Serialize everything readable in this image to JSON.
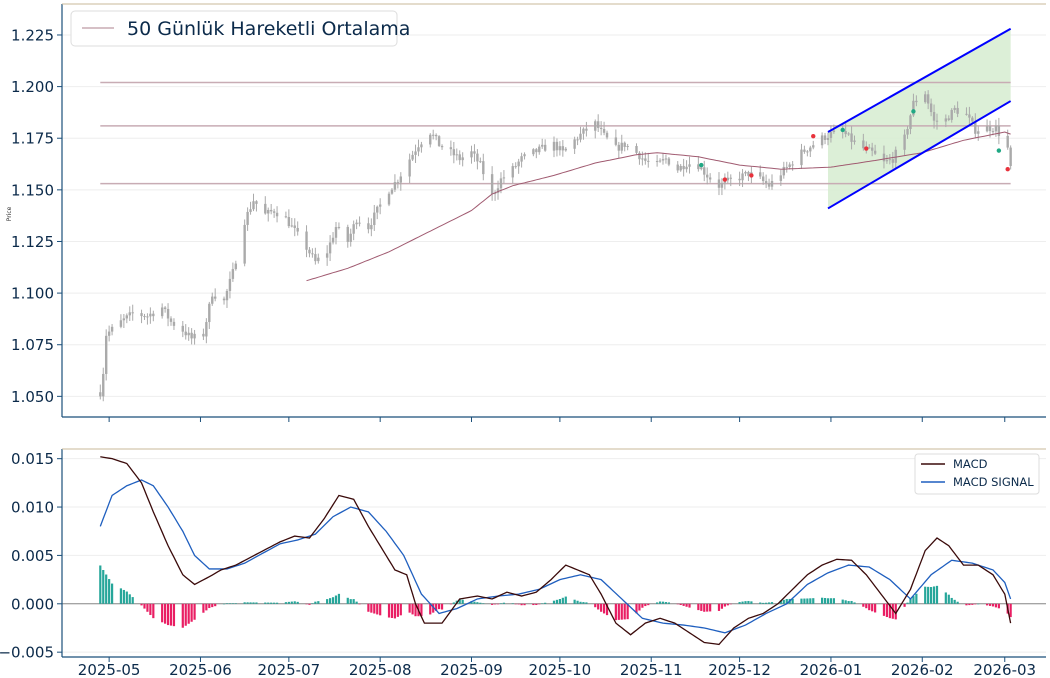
{
  "chart_data": [
    {
      "type": "candlestick",
      "ylabel": "Price",
      "ylim": [
        1.04,
        1.24
      ],
      "xlim": [
        "2025-04-15",
        "2026-03-15"
      ],
      "grid": true,
      "legend": {
        "placement": "top-left",
        "entries": [
          "50 Günlük Hareketli Ortalama"
        ]
      },
      "y_ticks": [
        "1.050",
        "1.075",
        "1.100",
        "1.125",
        "1.150",
        "1.175",
        "1.200",
        "1.225"
      ],
      "y_tick_values": [
        1.05,
        1.075,
        1.1,
        1.125,
        1.15,
        1.175,
        1.2,
        1.225
      ],
      "x_ticks": [
        "2025-05",
        "2025-06",
        "2025-07",
        "2025-08",
        "2025-09",
        "2025-10",
        "2025-11",
        "2025-12",
        "2026-01",
        "2026-02",
        "2026-03"
      ],
      "x_tick_dates": [
        "2025-05-01",
        "2025-06-01",
        "2025-07-01",
        "2025-08-01",
        "2025-09-01",
        "2025-10-01",
        "2025-11-01",
        "2025-12-01",
        "2026-01-01",
        "2026-02-01",
        "2026-03-01"
      ],
      "close_anchors": [
        [
          "2025-04-28",
          1.052
        ],
        [
          "2025-04-29",
          1.062
        ],
        [
          "2025-04-30",
          1.08
        ],
        [
          "2025-05-05",
          1.086
        ],
        [
          "2025-05-09",
          1.09
        ],
        [
          "2025-05-14",
          1.089
        ],
        [
          "2025-05-19",
          1.093
        ],
        [
          "2025-05-22",
          1.086
        ],
        [
          "2025-05-26",
          1.082
        ],
        [
          "2025-05-29",
          1.078
        ],
        [
          "2025-06-02",
          1.08
        ],
        [
          "2025-06-05",
          1.1
        ],
        [
          "2025-06-09",
          1.096
        ],
        [
          "2025-06-12",
          1.11
        ],
        [
          "2025-06-16",
          1.135
        ],
        [
          "2025-06-19",
          1.145
        ],
        [
          "2025-06-23",
          1.138
        ],
        [
          "2025-06-26",
          1.14
        ],
        [
          "2025-06-30",
          1.136
        ],
        [
          "2025-07-03",
          1.13
        ],
        [
          "2025-07-07",
          1.122
        ],
        [
          "2025-07-10",
          1.115
        ],
        [
          "2025-07-14",
          1.12
        ],
        [
          "2025-07-17",
          1.132
        ],
        [
          "2025-07-21",
          1.125
        ],
        [
          "2025-07-24",
          1.136
        ],
        [
          "2025-07-28",
          1.132
        ],
        [
          "2025-07-31",
          1.14
        ],
        [
          "2025-08-04",
          1.15
        ],
        [
          "2025-08-07",
          1.155
        ],
        [
          "2025-08-11",
          1.165
        ],
        [
          "2025-08-14",
          1.172
        ],
        [
          "2025-08-18",
          1.178
        ],
        [
          "2025-08-21",
          1.172
        ],
        [
          "2025-08-25",
          1.168
        ],
        [
          "2025-08-28",
          1.165
        ],
        [
          "2025-09-01",
          1.168
        ],
        [
          "2025-09-04",
          1.162
        ],
        [
          "2025-09-08",
          1.147
        ],
        [
          "2025-09-11",
          1.155
        ],
        [
          "2025-09-15",
          1.16
        ],
        [
          "2025-09-18",
          1.165
        ],
        [
          "2025-09-22",
          1.168
        ],
        [
          "2025-09-25",
          1.17
        ],
        [
          "2025-09-29",
          1.172
        ],
        [
          "2025-10-02",
          1.168
        ],
        [
          "2025-10-06",
          1.174
        ],
        [
          "2025-10-09",
          1.178
        ],
        [
          "2025-10-13",
          1.182
        ],
        [
          "2025-10-16",
          1.176
        ],
        [
          "2025-10-20",
          1.17
        ],
        [
          "2025-10-23",
          1.172
        ],
        [
          "2025-10-27",
          1.168
        ],
        [
          "2025-10-30",
          1.164
        ],
        [
          "2025-11-03",
          1.162
        ],
        [
          "2025-11-06",
          1.165
        ],
        [
          "2025-11-10",
          1.16
        ],
        [
          "2025-11-13",
          1.163
        ],
        [
          "2025-11-17",
          1.162
        ],
        [
          "2025-11-20",
          1.157
        ],
        [
          "2025-11-24",
          1.152
        ],
        [
          "2025-11-27",
          1.154
        ],
        [
          "2025-12-01",
          1.156
        ],
        [
          "2025-12-04",
          1.158
        ],
        [
          "2025-12-08",
          1.155
        ],
        [
          "2025-12-11",
          1.152
        ],
        [
          "2025-12-15",
          1.158
        ],
        [
          "2025-12-18",
          1.162
        ],
        [
          "2025-12-22",
          1.168
        ],
        [
          "2025-12-26",
          1.172
        ],
        [
          "2025-12-29",
          1.175
        ],
        [
          "2026-01-01",
          1.177
        ],
        [
          "2026-01-05",
          1.178
        ],
        [
          "2026-01-08",
          1.174
        ],
        [
          "2026-01-12",
          1.17
        ],
        [
          "2026-01-15",
          1.168
        ],
        [
          "2026-01-19",
          1.163
        ],
        [
          "2026-01-22",
          1.165
        ],
        [
          "2026-01-26",
          1.175
        ],
        [
          "2026-01-29",
          1.192
        ],
        [
          "2026-02-02",
          1.197
        ],
        [
          "2026-02-05",
          1.183
        ],
        [
          "2026-02-09",
          1.184
        ],
        [
          "2026-02-12",
          1.189
        ],
        [
          "2026-02-16",
          1.186
        ],
        [
          "2026-02-19",
          1.179
        ],
        [
          "2026-02-23",
          1.18
        ],
        [
          "2026-02-26",
          1.18
        ],
        [
          "2026-03-02",
          1.17
        ],
        [
          "2026-03-03",
          1.16
        ]
      ],
      "ma50_anchors": [
        [
          "2025-07-07",
          1.106
        ],
        [
          "2025-07-21",
          1.112
        ],
        [
          "2025-08-04",
          1.12
        ],
        [
          "2025-08-18",
          1.13
        ],
        [
          "2025-09-01",
          1.14
        ],
        [
          "2025-09-08",
          1.148
        ],
        [
          "2025-09-15",
          1.152
        ],
        [
          "2025-09-29",
          1.157
        ],
        [
          "2025-10-13",
          1.163
        ],
        [
          "2025-10-27",
          1.167
        ],
        [
          "2025-11-03",
          1.168
        ],
        [
          "2025-11-17",
          1.166
        ],
        [
          "2025-12-01",
          1.162
        ],
        [
          "2025-12-15",
          1.16
        ],
        [
          "2026-01-01",
          1.161
        ],
        [
          "2026-01-15",
          1.164
        ],
        [
          "2026-02-01",
          1.168
        ],
        [
          "2026-02-15",
          1.174
        ],
        [
          "2026-03-01",
          1.178
        ],
        [
          "2026-03-03",
          1.177
        ]
      ],
      "levels": [
        {
          "value": 1.202,
          "from": "2025-04-28",
          "to": "2026-03-03"
        },
        {
          "value": 1.181,
          "from": "2025-04-28",
          "to": "2026-03-03"
        },
        {
          "value": 1.153,
          "from": "2025-04-28",
          "to": "2026-03-03"
        }
      ],
      "channel": {
        "upper": [
          [
            "2025-12-31",
            1.178
          ],
          [
            "2026-03-03",
            1.228
          ]
        ],
        "lower": [
          [
            "2025-12-31",
            1.141
          ],
          [
            "2026-03-03",
            1.193
          ]
        ]
      },
      "signals": [
        {
          "date": "2025-11-18",
          "y": 1.162,
          "kind": "buy"
        },
        {
          "date": "2025-11-26",
          "y": 1.155,
          "kind": "sell"
        },
        {
          "date": "2025-12-05",
          "y": 1.157,
          "kind": "sell"
        },
        {
          "date": "2025-12-26",
          "y": 1.176,
          "kind": "sell"
        },
        {
          "date": "2026-01-05",
          "y": 1.179,
          "kind": "buy"
        },
        {
          "date": "2026-01-13",
          "y": 1.17,
          "kind": "sell"
        },
        {
          "date": "2026-01-29",
          "y": 1.188,
          "kind": "buy"
        },
        {
          "date": "2026-02-27",
          "y": 1.169,
          "kind": "buy"
        },
        {
          "date": "2026-03-02",
          "y": 1.16,
          "kind": "sell"
        }
      ],
      "colors": {
        "candle": "#aaaaaa",
        "ma50": "#a05a70",
        "levels": "#c8acb4",
        "channel_line": "#0000ff",
        "channel_fill": "#d6ecd0",
        "buy": "#20a884",
        "sell": "#e8323c",
        "spine": "#1b4f7a",
        "top_line": "#c8b89a"
      }
    },
    {
      "type": "line+bar",
      "ylim": [
        -0.0055,
        0.016
      ],
      "grid": true,
      "legend": {
        "placement": "top-right",
        "entries": [
          "MACD",
          "MACD SIGNAL"
        ]
      },
      "y_ticks": [
        "0.015",
        "0.010",
        "0.005",
        "0.000",
        "−0.005"
      ],
      "y_tick_values": [
        0.015,
        0.01,
        0.005,
        0.0,
        -0.005
      ],
      "series": [
        {
          "name": "MACD",
          "color": "#3a0a0a",
          "points": [
            [
              "2025-04-28",
              0.0152
            ],
            [
              "2025-05-02",
              0.015
            ],
            [
              "2025-05-07",
              0.0145
            ],
            [
              "2025-05-12",
              0.0125
            ],
            [
              "2025-05-16",
              0.0095
            ],
            [
              "2025-05-21",
              0.006
            ],
            [
              "2025-05-26",
              0.003
            ],
            [
              "2025-05-30",
              0.002
            ],
            [
              "2025-06-04",
              0.0028
            ],
            [
              "2025-06-08",
              0.0035
            ],
            [
              "2025-06-13",
              0.004
            ],
            [
              "2025-06-18",
              0.0048
            ],
            [
              "2025-06-23",
              0.0056
            ],
            [
              "2025-06-28",
              0.0064
            ],
            [
              "2025-07-03",
              0.007
            ],
            [
              "2025-07-08",
              0.0068
            ],
            [
              "2025-07-13",
              0.0088
            ],
            [
              "2025-07-18",
              0.0112
            ],
            [
              "2025-07-23",
              0.0108
            ],
            [
              "2025-07-28",
              0.008
            ],
            [
              "2025-08-02",
              0.0055
            ],
            [
              "2025-08-06",
              0.0035
            ],
            [
              "2025-08-10",
              0.003
            ],
            [
              "2025-08-13",
              0.0
            ],
            [
              "2025-08-16",
              -0.002
            ],
            [
              "2025-08-22",
              -0.002
            ],
            [
              "2025-08-28",
              0.0005
            ],
            [
              "2025-09-03",
              0.0008
            ],
            [
              "2025-09-08",
              0.0005
            ],
            [
              "2025-09-13",
              0.0012
            ],
            [
              "2025-09-18",
              0.0008
            ],
            [
              "2025-09-23",
              0.0012
            ],
            [
              "2025-09-28",
              0.0025
            ],
            [
              "2025-10-03",
              0.004
            ],
            [
              "2025-10-07",
              0.0035
            ],
            [
              "2025-10-11",
              0.003
            ],
            [
              "2025-10-15",
              0.001
            ],
            [
              "2025-10-20",
              -0.002
            ],
            [
              "2025-10-25",
              -0.0032
            ],
            [
              "2025-10-30",
              -0.002
            ],
            [
              "2025-11-04",
              -0.0015
            ],
            [
              "2025-11-09",
              -0.002
            ],
            [
              "2025-11-14",
              -0.003
            ],
            [
              "2025-11-19",
              -0.004
            ],
            [
              "2025-11-24",
              -0.0042
            ],
            [
              "2025-11-29",
              -0.0025
            ],
            [
              "2025-12-04",
              -0.0015
            ],
            [
              "2025-12-09",
              -0.001
            ],
            [
              "2025-12-14",
              0.0
            ],
            [
              "2025-12-19",
              0.0015
            ],
            [
              "2025-12-24",
              0.003
            ],
            [
              "2025-12-29",
              0.004
            ],
            [
              "2026-01-03",
              0.0046
            ],
            [
              "2026-01-08",
              0.0045
            ],
            [
              "2026-01-13",
              0.003
            ],
            [
              "2026-01-18",
              0.001
            ],
            [
              "2026-01-23",
              -0.001
            ],
            [
              "2026-01-28",
              0.0015
            ],
            [
              "2026-02-02",
              0.0055
            ],
            [
              "2026-02-06",
              0.0068
            ],
            [
              "2026-02-10",
              0.006
            ],
            [
              "2026-02-15",
              0.004
            ],
            [
              "2026-02-20",
              0.004
            ],
            [
              "2026-02-25",
              0.003
            ],
            [
              "2026-03-01",
              0.001
            ],
            [
              "2026-03-03",
              -0.002
            ]
          ]
        },
        {
          "name": "MACD SIGNAL",
          "color": "#1f5fbf",
          "points": [
            [
              "2025-04-28",
              0.008
            ],
            [
              "2025-05-02",
              0.0112
            ],
            [
              "2025-05-07",
              0.0122
            ],
            [
              "2025-05-12",
              0.0128
            ],
            [
              "2025-05-16",
              0.0122
            ],
            [
              "2025-05-21",
              0.01
            ],
            [
              "2025-05-26",
              0.0075
            ],
            [
              "2025-05-30",
              0.005
            ],
            [
              "2025-06-04",
              0.0036
            ],
            [
              "2025-06-10",
              0.0036
            ],
            [
              "2025-06-16",
              0.0042
            ],
            [
              "2025-06-22",
              0.0052
            ],
            [
              "2025-06-28",
              0.0062
            ],
            [
              "2025-07-04",
              0.0066
            ],
            [
              "2025-07-10",
              0.0072
            ],
            [
              "2025-07-16",
              0.009
            ],
            [
              "2025-07-22",
              0.01
            ],
            [
              "2025-07-28",
              0.0095
            ],
            [
              "2025-08-03",
              0.0075
            ],
            [
              "2025-08-09",
              0.005
            ],
            [
              "2025-08-15",
              0.001
            ],
            [
              "2025-08-21",
              -0.001
            ],
            [
              "2025-08-27",
              -0.0005
            ],
            [
              "2025-09-03",
              0.0005
            ],
            [
              "2025-09-10",
              0.0008
            ],
            [
              "2025-09-17",
              0.001
            ],
            [
              "2025-09-24",
              0.0015
            ],
            [
              "2025-10-01",
              0.0025
            ],
            [
              "2025-10-08",
              0.003
            ],
            [
              "2025-10-15",
              0.0025
            ],
            [
              "2025-10-22",
              0.0005
            ],
            [
              "2025-10-29",
              -0.0015
            ],
            [
              "2025-11-05",
              -0.002
            ],
            [
              "2025-11-12",
              -0.0022
            ],
            [
              "2025-11-19",
              -0.0025
            ],
            [
              "2025-11-26",
              -0.003
            ],
            [
              "2025-12-03",
              -0.0022
            ],
            [
              "2025-12-10",
              -0.001
            ],
            [
              "2025-12-17",
              0.0
            ],
            [
              "2025-12-24",
              0.002
            ],
            [
              "2025-12-31",
              0.0032
            ],
            [
              "2026-01-07",
              0.004
            ],
            [
              "2026-01-14",
              0.0038
            ],
            [
              "2026-01-21",
              0.0025
            ],
            [
              "2026-01-28",
              0.0005
            ],
            [
              "2026-02-04",
              0.003
            ],
            [
              "2026-02-11",
              0.0045
            ],
            [
              "2026-02-18",
              0.0042
            ],
            [
              "2026-02-25",
              0.0035
            ],
            [
              "2026-03-01",
              0.0022
            ],
            [
              "2026-03-03",
              0.0005
            ]
          ]
        }
      ],
      "histogram_colors": {
        "positive": "#26a69a",
        "negative": "#e91e63"
      },
      "colors": {
        "zero_line": "#888888",
        "spine": "#1b4f7a",
        "top_line": "#c8b89a"
      }
    }
  ]
}
